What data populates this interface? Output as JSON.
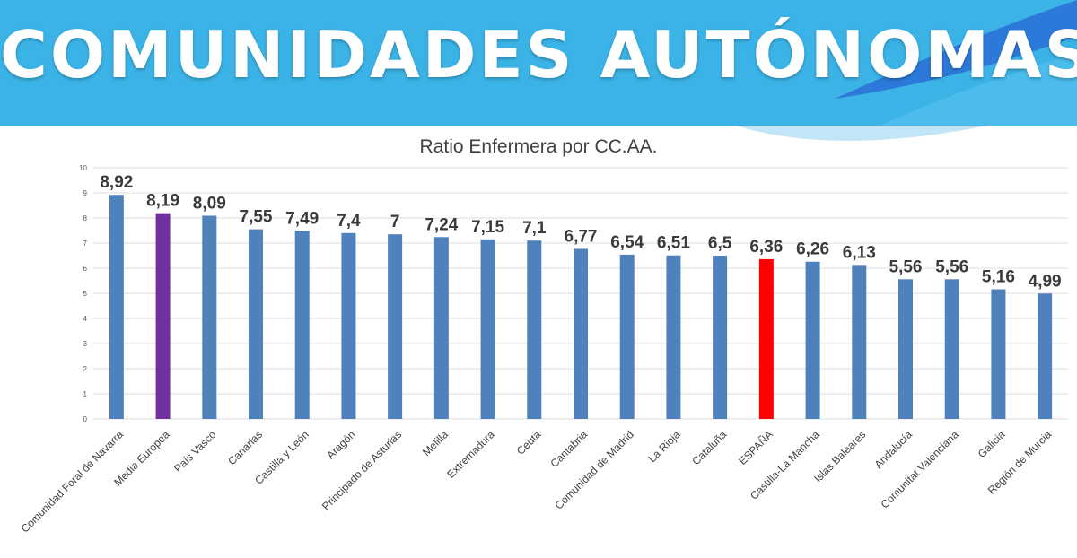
{
  "banner": {
    "title": "COMUNIDADES AUTÓNOMAS",
    "color": "#3bb3e6",
    "accent": "#2a6fd6"
  },
  "chart_data": {
    "type": "bar",
    "title": "Ratio Enfermera por CC.AA.",
    "xlabel": "",
    "ylabel": "",
    "ylim": [
      0,
      10
    ],
    "yticks": [
      0,
      1,
      2,
      3,
      4,
      5,
      6,
      7,
      8,
      9,
      10
    ],
    "grid": true,
    "categories": [
      "Comunidad Foral de Navarra",
      "Media Europea",
      "País Vasco",
      "Canarias",
      "Castilla y León",
      "Aragón",
      "Principado de Asturias",
      "Melilla",
      "Extremadura",
      "Ceuta",
      "Cantabria",
      "Comunidad de Madrid",
      "La Rioja",
      "Cataluña",
      "ESPAÑA",
      "Castilla-La Mancha",
      "Islas Baleares",
      "Andalucía",
      "Comunitat Valenciana",
      "Galicia",
      "Región de Murcia"
    ],
    "values": [
      8.92,
      8.19,
      8.09,
      7.55,
      7.49,
      7.4,
      7.35,
      7.24,
      7.15,
      7.1,
      6.77,
      6.54,
      6.51,
      6.5,
      6.36,
      6.26,
      6.13,
      5.56,
      5.56,
      5.16,
      4.99
    ],
    "value_labels": [
      "8,92",
      "8,19",
      "8,09",
      "7,55",
      "7,49",
      "7,4",
      "7",
      "7,24",
      "7,15",
      "7,1",
      "6,77",
      "6,54",
      "6,51",
      "6,5",
      "6,36",
      "6,26",
      "6,13",
      "5,56",
      "5,56",
      "5,16",
      "4,99"
    ],
    "colors": {
      "default": "#4f81bd",
      "highlights": {
        "Media Europea": "#7030a0",
        "ESPAÑA": "#ff0000"
      }
    }
  }
}
